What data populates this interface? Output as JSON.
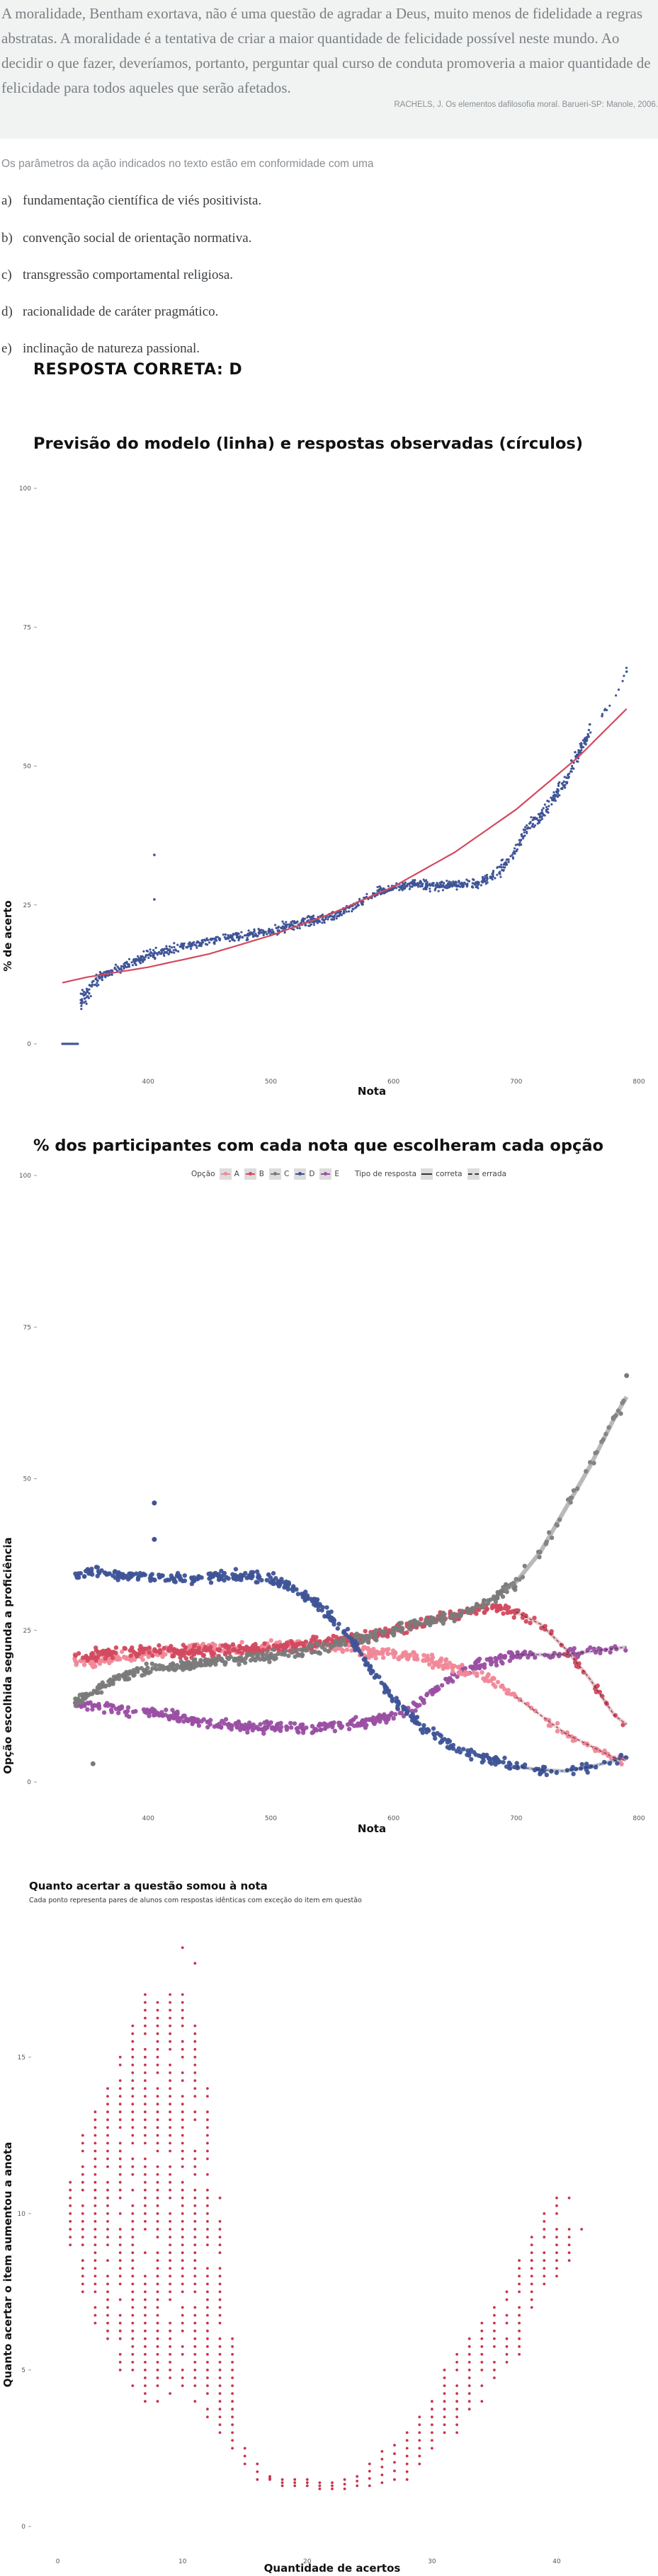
{
  "question": {
    "quote": "A moralidade, Bentham exortava, não é uma questão de agradar a Deus, muito menos de fidelidade a regras abstratas. A moralidade é a tentativa de criar a maior quantidade de felicidade possível neste mundo. Ao decidir o que fazer, deveríamos, portanto, perguntar qual curso de conduta promoveria a maior quantidade de felicidade para todos aqueles que serão afetados.",
    "source": "RACHELS, J. Os elementos dafilosofia moral. Barueri-SP: Manole, 2006.",
    "stem": "Os parâmetros da ação indicados no texto estão em conformidade com uma",
    "options": [
      {
        "letter": "a)",
        "text": "fundamentação científica de viés positivista."
      },
      {
        "letter": "b)",
        "text": "convenção social de orientação normativa."
      },
      {
        "letter": "c)",
        "text": "transgressão comportamental religiosa."
      },
      {
        "letter": "d)",
        "text": "racionalidade de caráter pragmático."
      },
      {
        "letter": "e)",
        "text": "inclinação de natureza passional."
      }
    ],
    "answer": "RESPOSTA CORRETA: D"
  },
  "colors": {
    "A": "#f08898",
    "B": "#d24a5f",
    "C": "#7a7a7a",
    "D": "#3f5497",
    "E": "#9a4fa3",
    "model_line": "#d24a5f",
    "points_blue": "#3f5497",
    "points_red": "#c8334c"
  },
  "chart_data": [
    {
      "type": "scatter",
      "title": "Previsão do modelo (linha) e respostas observadas (círculos)",
      "xlabel": "Nota",
      "ylabel": "% de acerto",
      "xticks": [
        400,
        500,
        600,
        700,
        800
      ],
      "yticks": [
        0,
        25,
        50,
        75,
        100
      ],
      "xlim": [
        330,
        800
      ],
      "ylim": [
        0,
        100
      ],
      "grid": false,
      "series": [
        {
          "kind": "points",
          "x": [
            330,
            333,
            336,
            340,
            345,
            350,
            360,
            370,
            380,
            390,
            400,
            410,
            420,
            430,
            440,
            450,
            460,
            470,
            480,
            490,
            500,
            510,
            520,
            530,
            540,
            550,
            560,
            570,
            580,
            590,
            600,
            610,
            620,
            630,
            640,
            650,
            660,
            670,
            680,
            690,
            700,
            710,
            720,
            730,
            740,
            750,
            760,
            770,
            780,
            790
          ],
          "y": [
            0,
            0,
            0,
            0,
            8,
            9,
            12,
            13,
            14,
            15,
            16,
            16.5,
            17,
            17.5,
            18,
            18.5,
            19,
            19.2,
            19.5,
            20,
            20.3,
            21,
            21.5,
            22,
            22.5,
            23,
            24,
            25,
            26.5,
            27.5,
            28,
            28.5,
            29,
            28.5,
            28.5,
            28.5,
            28.8,
            29,
            30,
            32,
            35,
            39,
            41,
            44,
            47,
            52,
            56,
            59,
            62,
            67
          ]
        },
        {
          "kind": "line",
          "x": [
            330,
            350,
            400,
            450,
            500,
            550,
            600,
            650,
            700,
            750,
            800
          ],
          "y": [
            11,
            12,
            13.8,
            16.2,
            19.5,
            23.5,
            28.3,
            34.5,
            42.2,
            51.5,
            62.5
          ]
        }
      ]
    },
    {
      "type": "line",
      "title": "% dos participantes com cada nota que escolheram cada opção",
      "xlabel": "Nota",
      "ylabel": "Opção escolhida segunda a proficiência",
      "xticks": [
        400,
        500,
        600,
        700,
        800
      ],
      "yticks": [
        0,
        25,
        50,
        75,
        100
      ],
      "xlim": [
        330,
        800
      ],
      "ylim": [
        0,
        100
      ],
      "legend": {
        "placement": "top",
        "option_title": "Opção",
        "options": [
          "A",
          "B",
          "C",
          "D",
          "E"
        ],
        "type_title": "Tipo de resposta",
        "types": [
          "correta",
          "errada"
        ]
      },
      "x": [
        340,
        360,
        380,
        400,
        420,
        440,
        460,
        480,
        500,
        520,
        540,
        560,
        580,
        600,
        620,
        640,
        660,
        680,
        700,
        720,
        740,
        760,
        780,
        800
      ],
      "series": [
        {
          "name": "A",
          "values": [
            20,
            20,
            20.5,
            21,
            21.5,
            22,
            22,
            22,
            22.5,
            22.5,
            22.5,
            22,
            21.5,
            21,
            20.5,
            19.5,
            18,
            17,
            14,
            11,
            8,
            6,
            4,
            3
          ]
        },
        {
          "name": "B",
          "values": [
            21,
            21,
            21.5,
            21.5,
            21.5,
            21.5,
            21.5,
            22,
            22,
            22.5,
            23,
            23.5,
            24,
            25,
            26,
            27,
            28,
            29,
            28,
            26,
            22,
            17,
            11,
            8
          ]
        },
        {
          "name": "C",
          "values": [
            13,
            15.5,
            17.5,
            18.5,
            19,
            19.5,
            20,
            20.5,
            21,
            21.5,
            22,
            23,
            24,
            25,
            26,
            27,
            28,
            30,
            33,
            38,
            45,
            52,
            60,
            67
          ]
        },
        {
          "name": "D",
          "values": [
            34,
            34.5,
            34,
            34,
            33.5,
            33.5,
            34,
            34,
            33.5,
            32,
            29,
            25,
            19,
            13.5,
            9.5,
            7,
            5,
            3.5,
            2.5,
            2,
            1.8,
            2.5,
            3.5,
            5
          ]
        },
        {
          "name": "E",
          "values": [
            13,
            12.5,
            12,
            11.5,
            11,
            10,
            9.5,
            9,
            9,
            9,
            9,
            9.5,
            10,
            11,
            13,
            16,
            19,
            20,
            21,
            21,
            21,
            21.5,
            22,
            22.5
          ]
        }
      ]
    },
    {
      "type": "scatter",
      "title": "Quanto acertar a questão somou à nota",
      "subtitle": "Cada ponto representa pares de alunos com respostas idênticas com exceção do item em questão",
      "xlabel": "Quantidade de acertos",
      "ylabel": "Quanto acertar o item aumentou a anota",
      "xticks": [
        0,
        10,
        20,
        30,
        40
      ],
      "yticks": [
        0,
        5,
        10,
        15
      ],
      "xlim": [
        -1,
        45
      ],
      "ylim": [
        0,
        19
      ],
      "series": [
        {
          "name": "ranges",
          "x": [
            1,
            2,
            3,
            4,
            5,
            6,
            7,
            8,
            9,
            10,
            11,
            12,
            13,
            14,
            15,
            16,
            17,
            18,
            19,
            20,
            21,
            22,
            23,
            24,
            25,
            26,
            27,
            28,
            29,
            30,
            31,
            32,
            33,
            34,
            35,
            36,
            37,
            38,
            39,
            40,
            41
          ],
          "ymin": [
            9,
            7.5,
            6.5,
            6,
            5,
            4.5,
            4,
            4,
            4,
            4.5,
            4,
            3.5,
            3,
            2.5,
            2,
            1.5,
            1.5,
            1.3,
            1.3,
            1.3,
            1.2,
            1.2,
            1.2,
            1.3,
            1.3,
            1.4,
            1.5,
            1.5,
            2,
            2.5,
            3,
            3,
            3.5,
            4,
            4.5,
            5,
            5.5,
            7,
            7.5,
            8,
            8.5
          ],
          "ymax": [
            11,
            12.5,
            13.5,
            14,
            15,
            16,
            17,
            17,
            17,
            17,
            16,
            14,
            10,
            6,
            2.5,
            2,
            1.6,
            1.5,
            1.5,
            1.5,
            1.4,
            1.4,
            1.5,
            1.6,
            2,
            2.4,
            2.6,
            3,
            3.5,
            4,
            5,
            5.5,
            6,
            6.5,
            7,
            7.5,
            8.5,
            9.5,
            10,
            10.5,
            9.5
          ]
        }
      ]
    }
  ]
}
